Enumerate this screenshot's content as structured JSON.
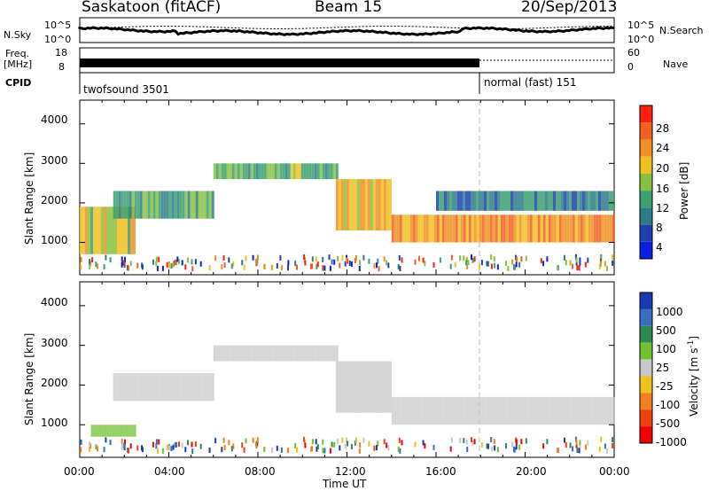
{
  "header": {
    "site": "Saskatoon (fitACF)",
    "beam": "Beam 15",
    "date": "20/Sep/2013"
  },
  "strip": {
    "nsky_label": "N.Sky",
    "nsky_ticks": [
      "10^5",
      "10^0"
    ],
    "nsearch_label": "N.Search",
    "nsearch_ticks": [
      "10^5",
      "10^0"
    ],
    "freq_label": "Freq.",
    "freq_unit": "[MHz]",
    "freq_ticks": [
      "18",
      "8"
    ],
    "nave_label": "Nave",
    "nave_ticks": [
      "60",
      "0"
    ],
    "cpid_label": "CPID",
    "cpid_programs": [
      "twofsound 3501",
      "normal (fast) 151"
    ]
  },
  "x_axis": {
    "label": "Time UT",
    "ticks": [
      "00:00",
      "04:00",
      "08:00",
      "12:00",
      "16:00",
      "20:00",
      "00:00"
    ]
  },
  "power_panel": {
    "ylabel": "Slant Range [km]",
    "yticks": [
      "4000",
      "3000",
      "2000",
      "1000"
    ],
    "colorbar_label": "Power [dB]",
    "colorbar_ticks": [
      "28",
      "24",
      "20",
      "16",
      "12",
      "8",
      "4"
    ],
    "colors": [
      "#0b1fe0",
      "#1f3fb0",
      "#2e7b88",
      "#3aa070",
      "#88c040",
      "#f0c020",
      "#f09020",
      "#f06020",
      "#ff2010"
    ]
  },
  "velocity_panel": {
    "ylabel": "Slant Range [km]",
    "yticks": [
      "4000",
      "3000",
      "2000",
      "1000"
    ],
    "colorbar_label": "Velocity [m s",
    "colorbar_unit_sup": "-1",
    "colorbar_ticks": [
      "1000",
      "500",
      "100",
      "25",
      "-25",
      "-100",
      "-500",
      "-1000"
    ],
    "colors": [
      "#1a3ab0",
      "#3a6fc0",
      "#2e8a50",
      "#70c030",
      "#c8c8c8",
      "#f0c020",
      "#f08020",
      "#f04010",
      "#f00000"
    ]
  },
  "chart_data": [
    {
      "type": "heatmap",
      "title": "Power",
      "xlabel": "Time UT",
      "ylabel": "Slant Range [km]",
      "xlim": [
        0,
        24
      ],
      "ylim": [
        180,
        4600
      ],
      "colorbar": {
        "label": "Power [dB]",
        "range": [
          0,
          32
        ],
        "ticks": [
          4,
          8,
          12,
          16,
          20,
          24,
          28
        ]
      },
      "bands": [
        {
          "start_h": 0.0,
          "end_h": 2.5,
          "range_km": [
            700,
            1900
          ],
          "level_db": 18
        },
        {
          "start_h": 1.5,
          "end_h": 6.0,
          "range_km": [
            1600,
            2300
          ],
          "level_db": 12
        },
        {
          "start_h": 6.0,
          "end_h": 11.5,
          "range_km": [
            2600,
            3000
          ],
          "level_db": 14
        },
        {
          "start_h": 11.5,
          "end_h": 14.0,
          "range_km": [
            1300,
            2600
          ],
          "level_db": 20
        },
        {
          "start_h": 14.0,
          "end_h": 24.0,
          "range_km": [
            1000,
            1700
          ],
          "level_db": 24
        },
        {
          "start_h": 16.0,
          "end_h": 24.0,
          "range_km": [
            1800,
            2300
          ],
          "level_db": 8
        }
      ]
    },
    {
      "type": "heatmap",
      "title": "Velocity",
      "xlabel": "Time UT",
      "ylabel": "Slant Range [km]",
      "xlim": [
        0,
        24
      ],
      "ylim": [
        180,
        4600
      ],
      "colorbar": {
        "label": "Velocity [m s-1]",
        "ticks": [
          1000,
          500,
          100,
          25,
          -25,
          -100,
          -500,
          -1000
        ]
      },
      "bands": [
        {
          "start_h": 0.5,
          "end_h": 2.5,
          "range_km": [
            700,
            1000
          ],
          "velocity_ms": 100
        },
        {
          "start_h": 1.5,
          "end_h": 6.0,
          "range_km": [
            1600,
            2300
          ],
          "velocity_ms": 0
        },
        {
          "start_h": 6.0,
          "end_h": 11.5,
          "range_km": [
            2600,
            3000
          ],
          "velocity_ms": 0
        },
        {
          "start_h": 11.5,
          "end_h": 14.0,
          "range_km": [
            1300,
            2600
          ],
          "velocity_ms": 0
        },
        {
          "start_h": 14.0,
          "end_h": 24.0,
          "range_km": [
            1000,
            1700
          ],
          "velocity_ms": 0
        }
      ]
    }
  ]
}
